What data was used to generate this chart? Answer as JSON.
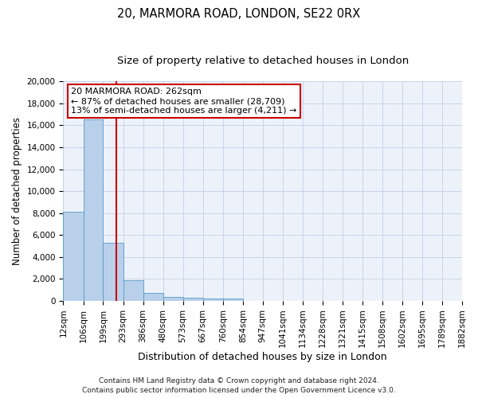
{
  "title1": "20, MARMORA ROAD, LONDON, SE22 0RX",
  "title2": "Size of property relative to detached houses in London",
  "xlabel": "Distribution of detached houses by size in London",
  "ylabel": "Number of detached properties",
  "annotation_title": "20 MARMORA ROAD: 262sqm",
  "annotation_line1": "← 87% of detached houses are smaller (28,709)",
  "annotation_line2": "13% of semi-detached houses are larger (4,211) →",
  "footer1": "Contains HM Land Registry data © Crown copyright and database right 2024.",
  "footer2": "Contains public sector information licensed under the Open Government Licence v3.0.",
  "property_size": 262,
  "bar_color": "#b8d0ea",
  "bar_edge_color": "#5a9ac8",
  "vline_color": "#cc0000",
  "annotation_box_color": "#cc0000",
  "grid_color": "#c8d4e8",
  "background_color": "#edf2fa",
  "bin_edges": [
    12,
    106,
    199,
    293,
    386,
    480,
    573,
    667,
    760,
    854,
    947,
    1041,
    1134,
    1228,
    1321,
    1415,
    1508,
    1602,
    1695,
    1789,
    1882
  ],
  "bin_labels": [
    "12sqm",
    "106sqm",
    "199sqm",
    "293sqm",
    "386sqm",
    "480sqm",
    "573sqm",
    "667sqm",
    "760sqm",
    "854sqm",
    "947sqm",
    "1041sqm",
    "1134sqm",
    "1228sqm",
    "1321sqm",
    "1415sqm",
    "1508sqm",
    "1602sqm",
    "1695sqm",
    "1789sqm",
    "1882sqm"
  ],
  "bar_heights": [
    8100,
    16500,
    5300,
    1850,
    750,
    350,
    280,
    220,
    200,
    0,
    0,
    0,
    0,
    0,
    0,
    0,
    0,
    0,
    0,
    0
  ],
  "ylim": [
    0,
    20000
  ],
  "yticks": [
    0,
    2000,
    4000,
    6000,
    8000,
    10000,
    12000,
    14000,
    16000,
    18000,
    20000
  ],
  "title1_fontsize": 10.5,
  "title2_fontsize": 9.5,
  "xlabel_fontsize": 9,
  "ylabel_fontsize": 8.5,
  "tick_fontsize": 7.5,
  "annotation_fontsize": 8,
  "footer_fontsize": 6.5
}
